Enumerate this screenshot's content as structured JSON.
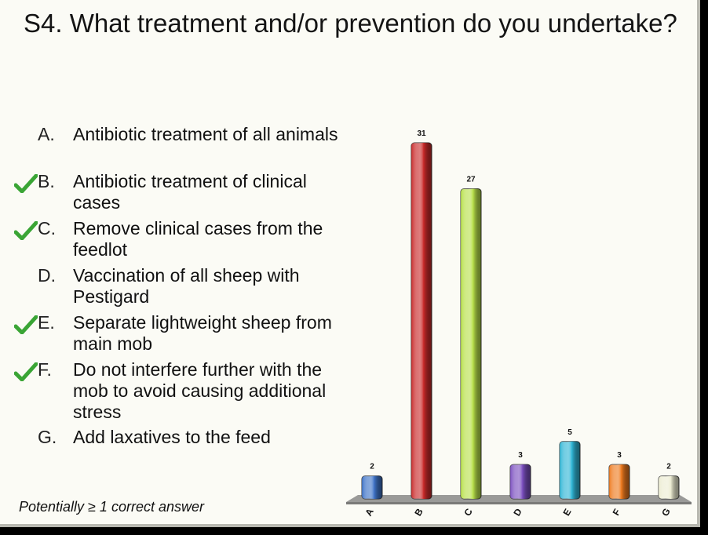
{
  "slide": {
    "title": "S4. What treatment and/or prevention do you undertake?",
    "footnote": "Potentially ≥ 1 correct answer"
  },
  "options": [
    {
      "letter": "A.",
      "text": "Antibiotic treatment of all animals",
      "correct": false
    },
    {
      "letter": "B.",
      "text": "Antibiotic treatment of clinical cases",
      "correct": true
    },
    {
      "letter": "C.",
      "text": "Remove clinical cases from the feedlot",
      "correct": true
    },
    {
      "letter": "D.",
      "text": "Vaccination of all sheep with Pestigard",
      "correct": false
    },
    {
      "letter": "E.",
      "text": "Separate lightweight sheep from main mob",
      "correct": true
    },
    {
      "letter": "F.",
      "text": "Do not interfere further with the mob to avoid causing additional stress",
      "correct": true
    },
    {
      "letter": "G.",
      "text": "Add laxatives to the feed",
      "correct": false
    }
  ],
  "chart_data": {
    "type": "bar",
    "categories": [
      "A",
      "B",
      "C",
      "D",
      "E",
      "F",
      "G"
    ],
    "values": [
      2,
      31,
      27,
      3,
      5,
      3,
      2
    ],
    "ylim": [
      0,
      31
    ],
    "colors": [
      "#3f74c8",
      "#c92a2a",
      "#b8e04a",
      "#7b4fc0",
      "#2fb6d6",
      "#ee7a1e",
      "#ececd2"
    ],
    "grid": false
  }
}
